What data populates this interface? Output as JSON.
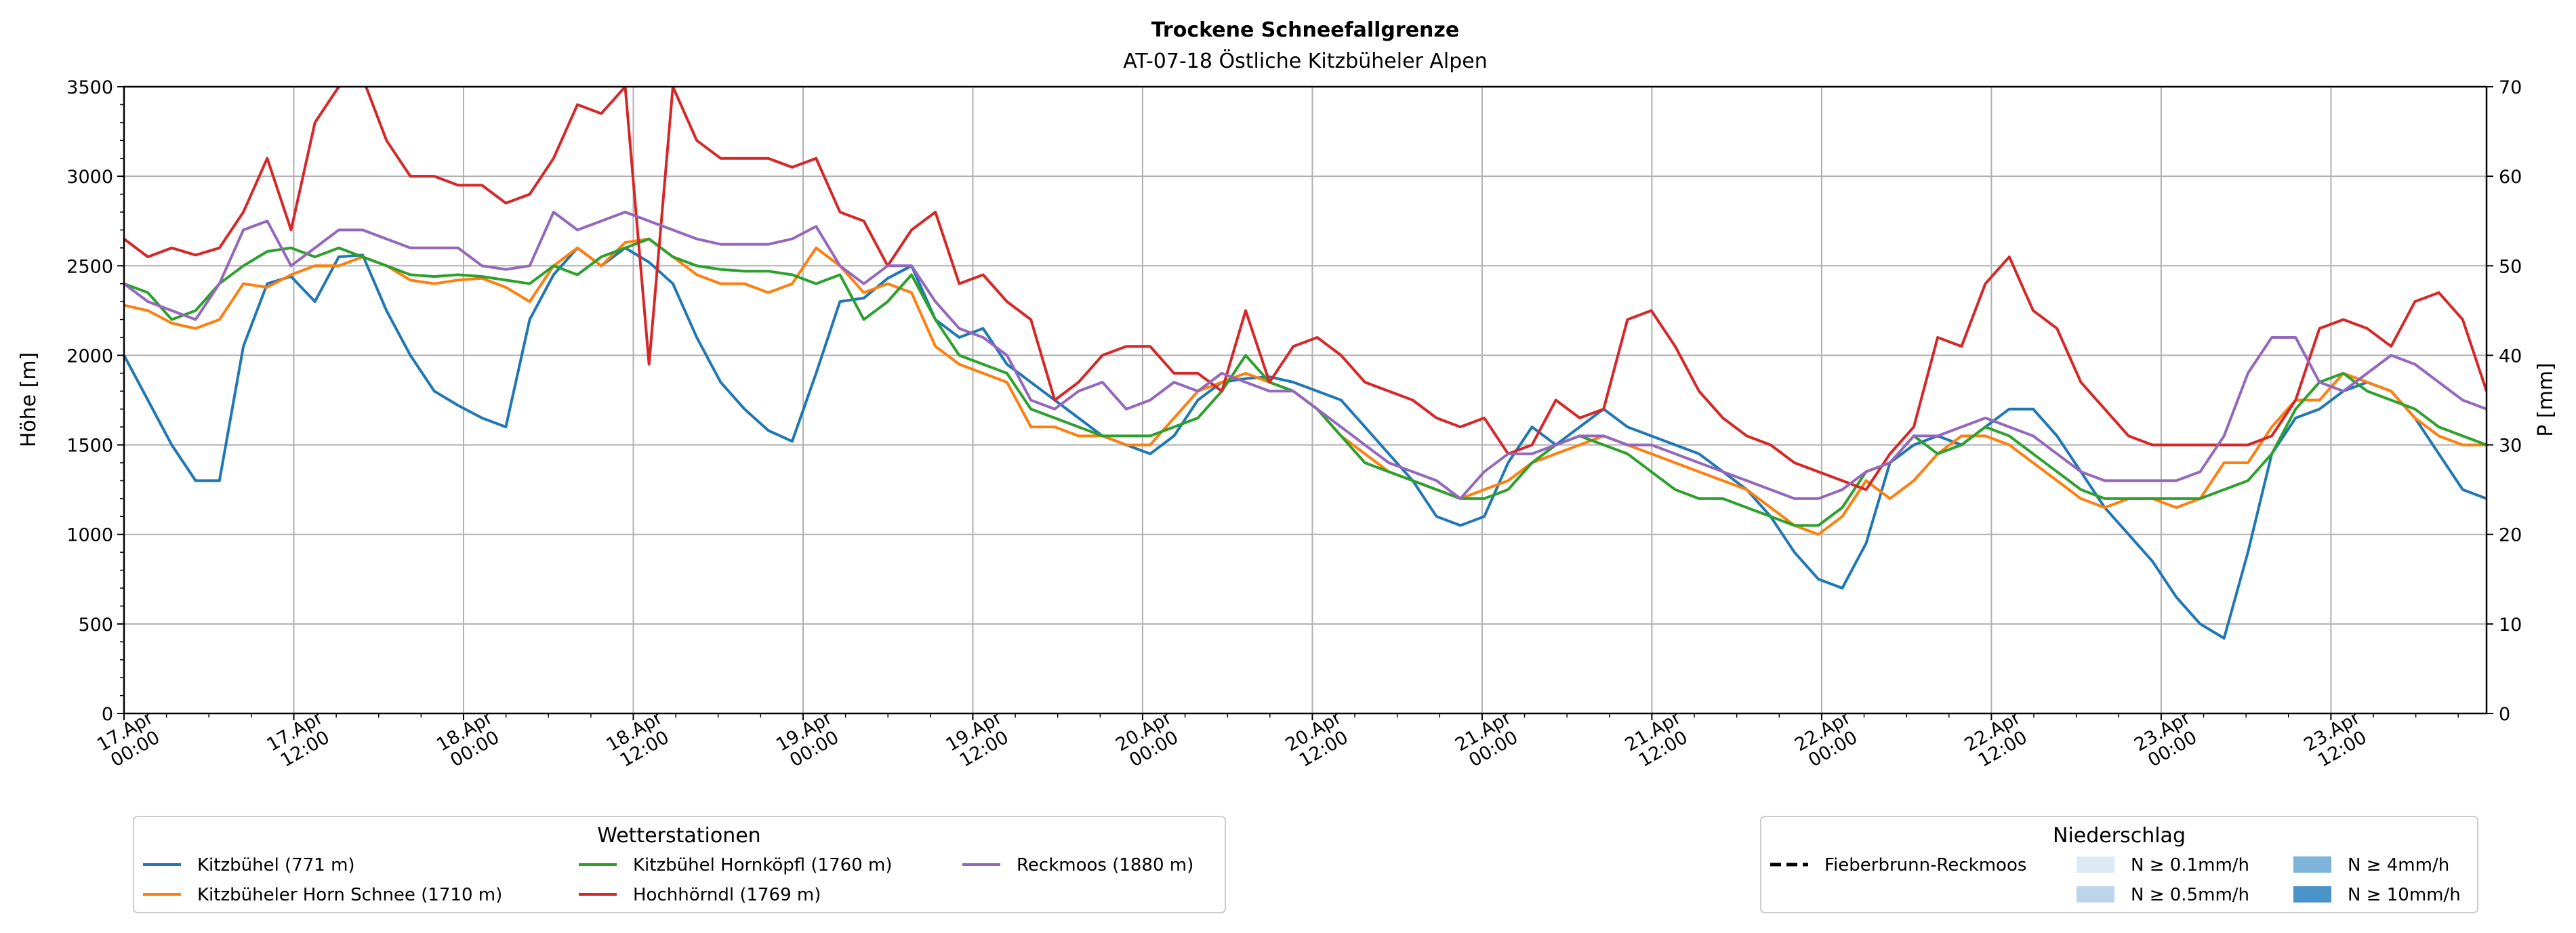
{
  "chart_data": {
    "type": "line",
    "title": "Trockene Schneefallgrenze",
    "subtitle": "AT-07-18 Östliche Kitzbüheler Alpen",
    "ylabel": "Höhe [m]",
    "y2label": "P [mm]",
    "ylim": [
      0,
      3500
    ],
    "y2lim": [
      0,
      70
    ],
    "yticks": [
      "0",
      "500",
      "1000",
      "1500",
      "2000",
      "2500",
      "3000",
      "3500"
    ],
    "y2ticks": [
      "0",
      "10",
      "20",
      "30",
      "40",
      "50",
      "60",
      "70"
    ],
    "x_range_hours": [
      0,
      167
    ],
    "x_step_hours": 3,
    "xticks": [
      {
        "h": 0,
        "l1": "17.Apr",
        "l2": "00:00"
      },
      {
        "h": 12,
        "l1": "17.Apr",
        "l2": "12:00"
      },
      {
        "h": 24,
        "l1": "18.Apr",
        "l2": "00:00"
      },
      {
        "h": 36,
        "l1": "18.Apr",
        "l2": "12:00"
      },
      {
        "h": 48,
        "l1": "19.Apr",
        "l2": "00:00"
      },
      {
        "h": 60,
        "l1": "19.Apr",
        "l2": "12:00"
      },
      {
        "h": 72,
        "l1": "20.Apr",
        "l2": "00:00"
      },
      {
        "h": 84,
        "l1": "20.Apr",
        "l2": "12:00"
      },
      {
        "h": 96,
        "l1": "21.Apr",
        "l2": "00:00"
      },
      {
        "h": 108,
        "l1": "21.Apr",
        "l2": "12:00"
      },
      {
        "h": 120,
        "l1": "22.Apr",
        "l2": "00:00"
      },
      {
        "h": 132,
        "l1": "22.Apr",
        "l2": "12:00"
      },
      {
        "h": 144,
        "l1": "23.Apr",
        "l2": "00:00"
      },
      {
        "h": 156,
        "l1": "23.Apr",
        "l2": "12:00"
      }
    ],
    "grid": true,
    "series": [
      {
        "name": "Kitzbühel (771 m)",
        "color": "#1f77b4",
        "values": [
          2000,
          1750,
          1500,
          1300,
          1300,
          2050,
          2400,
          2440,
          2300,
          2550,
          2560,
          2250,
          2000,
          1800,
          1720,
          1650,
          1600,
          2200,
          2450,
          2600,
          2500,
          2600,
          2520,
          2400,
          2100,
          1850,
          1700,
          1580,
          1520,
          1900,
          2300,
          2320,
          2430,
          2500,
          2200,
          2100,
          2150,
          1950,
          1850,
          1750,
          1650,
          1550,
          1500,
          1450,
          1550,
          1750,
          1850,
          1870,
          1880,
          1850,
          1800,
          1750,
          1600,
          1450,
          1300,
          1100,
          1050,
          1100,
          1400,
          1600,
          1500,
          1600,
          1700,
          1600,
          1550,
          1500,
          1450,
          1350,
          1250,
          1100,
          900,
          750,
          700,
          950,
          1400,
          1500,
          1550,
          1500,
          1600,
          1700,
          1700,
          1550,
          1350,
          1150,
          1000,
          850,
          650,
          500,
          420,
          900,
          1450,
          1650,
          1700,
          1800,
          1850,
          1800,
          1650,
          1450,
          1250,
          1200
        ]
      },
      {
        "name": "Kitzbüheler Horn Schnee (1710 m)",
        "color": "#ff7f0e",
        "values": [
          2280,
          2250,
          2180,
          2150,
          2200,
          2400,
          2380,
          2450,
          2500,
          2500,
          2550,
          2500,
          2420,
          2400,
          2420,
          2430,
          2380,
          2300,
          2500,
          2600,
          2500,
          2630,
          2650,
          2550,
          2450,
          2400,
          2400,
          2350,
          2400,
          2600,
          2500,
          2350,
          2400,
          2350,
          2050,
          1950,
          1900,
          1850,
          1600,
          1600,
          1550,
          1550,
          1500,
          1500,
          1650,
          1800,
          1850,
          1900,
          1850,
          1800,
          1700,
          1550,
          1450,
          1350,
          1300,
          1250,
          1200,
          1250,
          1300,
          1400,
          1450,
          1500,
          1550,
          1500,
          1450,
          1400,
          1350,
          1300,
          1250,
          1150,
          1050,
          1000,
          1100,
          1300,
          1200,
          1300,
          1450,
          1550,
          1550,
          1500,
          1400,
          1300,
          1200,
          1150,
          1200,
          1200,
          1150,
          1200,
          1400,
          1400,
          1600,
          1750,
          1750,
          1900,
          1850,
          1800,
          1650,
          1550,
          1500,
          1500
        ]
      },
      {
        "name": "Kitzbühel Hornköpfl (1760 m)",
        "color": "#2ca02c",
        "values": [
          2400,
          2350,
          2200,
          2250,
          2400,
          2500,
          2580,
          2600,
          2550,
          2600,
          2550,
          2500,
          2450,
          2440,
          2450,
          2440,
          2420,
          2400,
          2500,
          2450,
          2550,
          2600,
          2650,
          2550,
          2500,
          2480,
          2470,
          2470,
          2450,
          2400,
          2450,
          2200,
          2300,
          2450,
          2200,
          2000,
          1950,
          1900,
          1700,
          1650,
          1600,
          1550,
          1550,
          1550,
          1600,
          1650,
          1800,
          2000,
          1850,
          1800,
          1700,
          1550,
          1400,
          1350,
          1300,
          1250,
          1200,
          1200,
          1250,
          1400,
          1500,
          1550,
          1500,
          1450,
          1350,
          1250,
          1200,
          1200,
          1150,
          1100,
          1050,
          1050,
          1150,
          1350,
          1400,
          1550,
          1450,
          1500,
          1600,
          1550,
          1450,
          1350,
          1250,
          1200,
          1200,
          1200,
          1200,
          1200,
          1250,
          1300,
          1450,
          1700,
          1850,
          1900,
          1800,
          1750,
          1700,
          1600,
          1550,
          1500
        ]
      },
      {
        "name": "Hochhörndl (1769 m)",
        "color": "#d62728",
        "values": [
          2650,
          2550,
          2600,
          2560,
          2600,
          2800,
          3100,
          2700,
          3300,
          3500,
          3550,
          3200,
          3000,
          3000,
          2950,
          2950,
          2850,
          2900,
          3100,
          3400,
          3350,
          3500,
          1950,
          3500,
          3200,
          3100,
          3100,
          3100,
          3050,
          3100,
          2800,
          2750,
          2500,
          2700,
          2800,
          2400,
          2450,
          2300,
          2200,
          1750,
          1850,
          2000,
          2050,
          2050,
          1900,
          1900,
          1800,
          2250,
          1850,
          2050,
          2100,
          2000,
          1850,
          1800,
          1750,
          1650,
          1600,
          1650,
          1450,
          1500,
          1750,
          1650,
          1700,
          2200,
          2250,
          2050,
          1800,
          1650,
          1550,
          1500,
          1400,
          1350,
          1300,
          1250,
          1450,
          1600,
          2100,
          2050,
          2400,
          2550,
          2250,
          2150,
          1850,
          1700,
          1550,
          1500,
          1500,
          1500,
          1500,
          1500,
          1550,
          1750,
          2150,
          2200,
          2150,
          2050,
          2300,
          2350,
          2200,
          1800
        ]
      },
      {
        "name": "Reckmoos (1880 m)",
        "color": "#9467bd",
        "values": [
          2400,
          2300,
          2250,
          2200,
          2400,
          2700,
          2750,
          2500,
          2600,
          2700,
          2700,
          2650,
          2600,
          2600,
          2600,
          2500,
          2480,
          2500,
          2800,
          2700,
          2750,
          2800,
          2750,
          2700,
          2650,
          2620,
          2620,
          2620,
          2650,
          2720,
          2500,
          2400,
          2500,
          2500,
          2300,
          2150,
          2100,
          2000,
          1750,
          1700,
          1800,
          1850,
          1700,
          1750,
          1850,
          1800,
          1900,
          1850,
          1800,
          1800,
          1700,
          1600,
          1500,
          1400,
          1350,
          1300,
          1200,
          1350,
          1450,
          1450,
          1500,
          1550,
          1550,
          1500,
          1500,
          1450,
          1400,
          1350,
          1300,
          1250,
          1200,
          1200,
          1250,
          1350,
          1400,
          1550,
          1550,
          1600,
          1650,
          1600,
          1550,
          1450,
          1350,
          1300,
          1300,
          1300,
          1300,
          1350,
          1550,
          1900,
          2100,
          2100,
          1850,
          1800,
          1900,
          2000,
          1950,
          1850,
          1750,
          1700
        ]
      }
    ],
    "legend_stations": {
      "title": "Wetterstationen",
      "placement": "bottom-left"
    },
    "legend_precip": {
      "title": "Niederschlag",
      "placement": "bottom-right",
      "line_label": "Fieberbrunn-Reckmoos",
      "items": [
        {
          "label": "N ≥ 0.1mm/h",
          "color": "#dde9f4"
        },
        {
          "label": "N ≥ 0.5mm/h",
          "color": "#bcd5ea"
        },
        {
          "label": "N ≥ 4mm/h",
          "color": "#7fb4da"
        },
        {
          "label": "N ≥ 10mm/h",
          "color": "#4a93c8"
        }
      ]
    }
  }
}
